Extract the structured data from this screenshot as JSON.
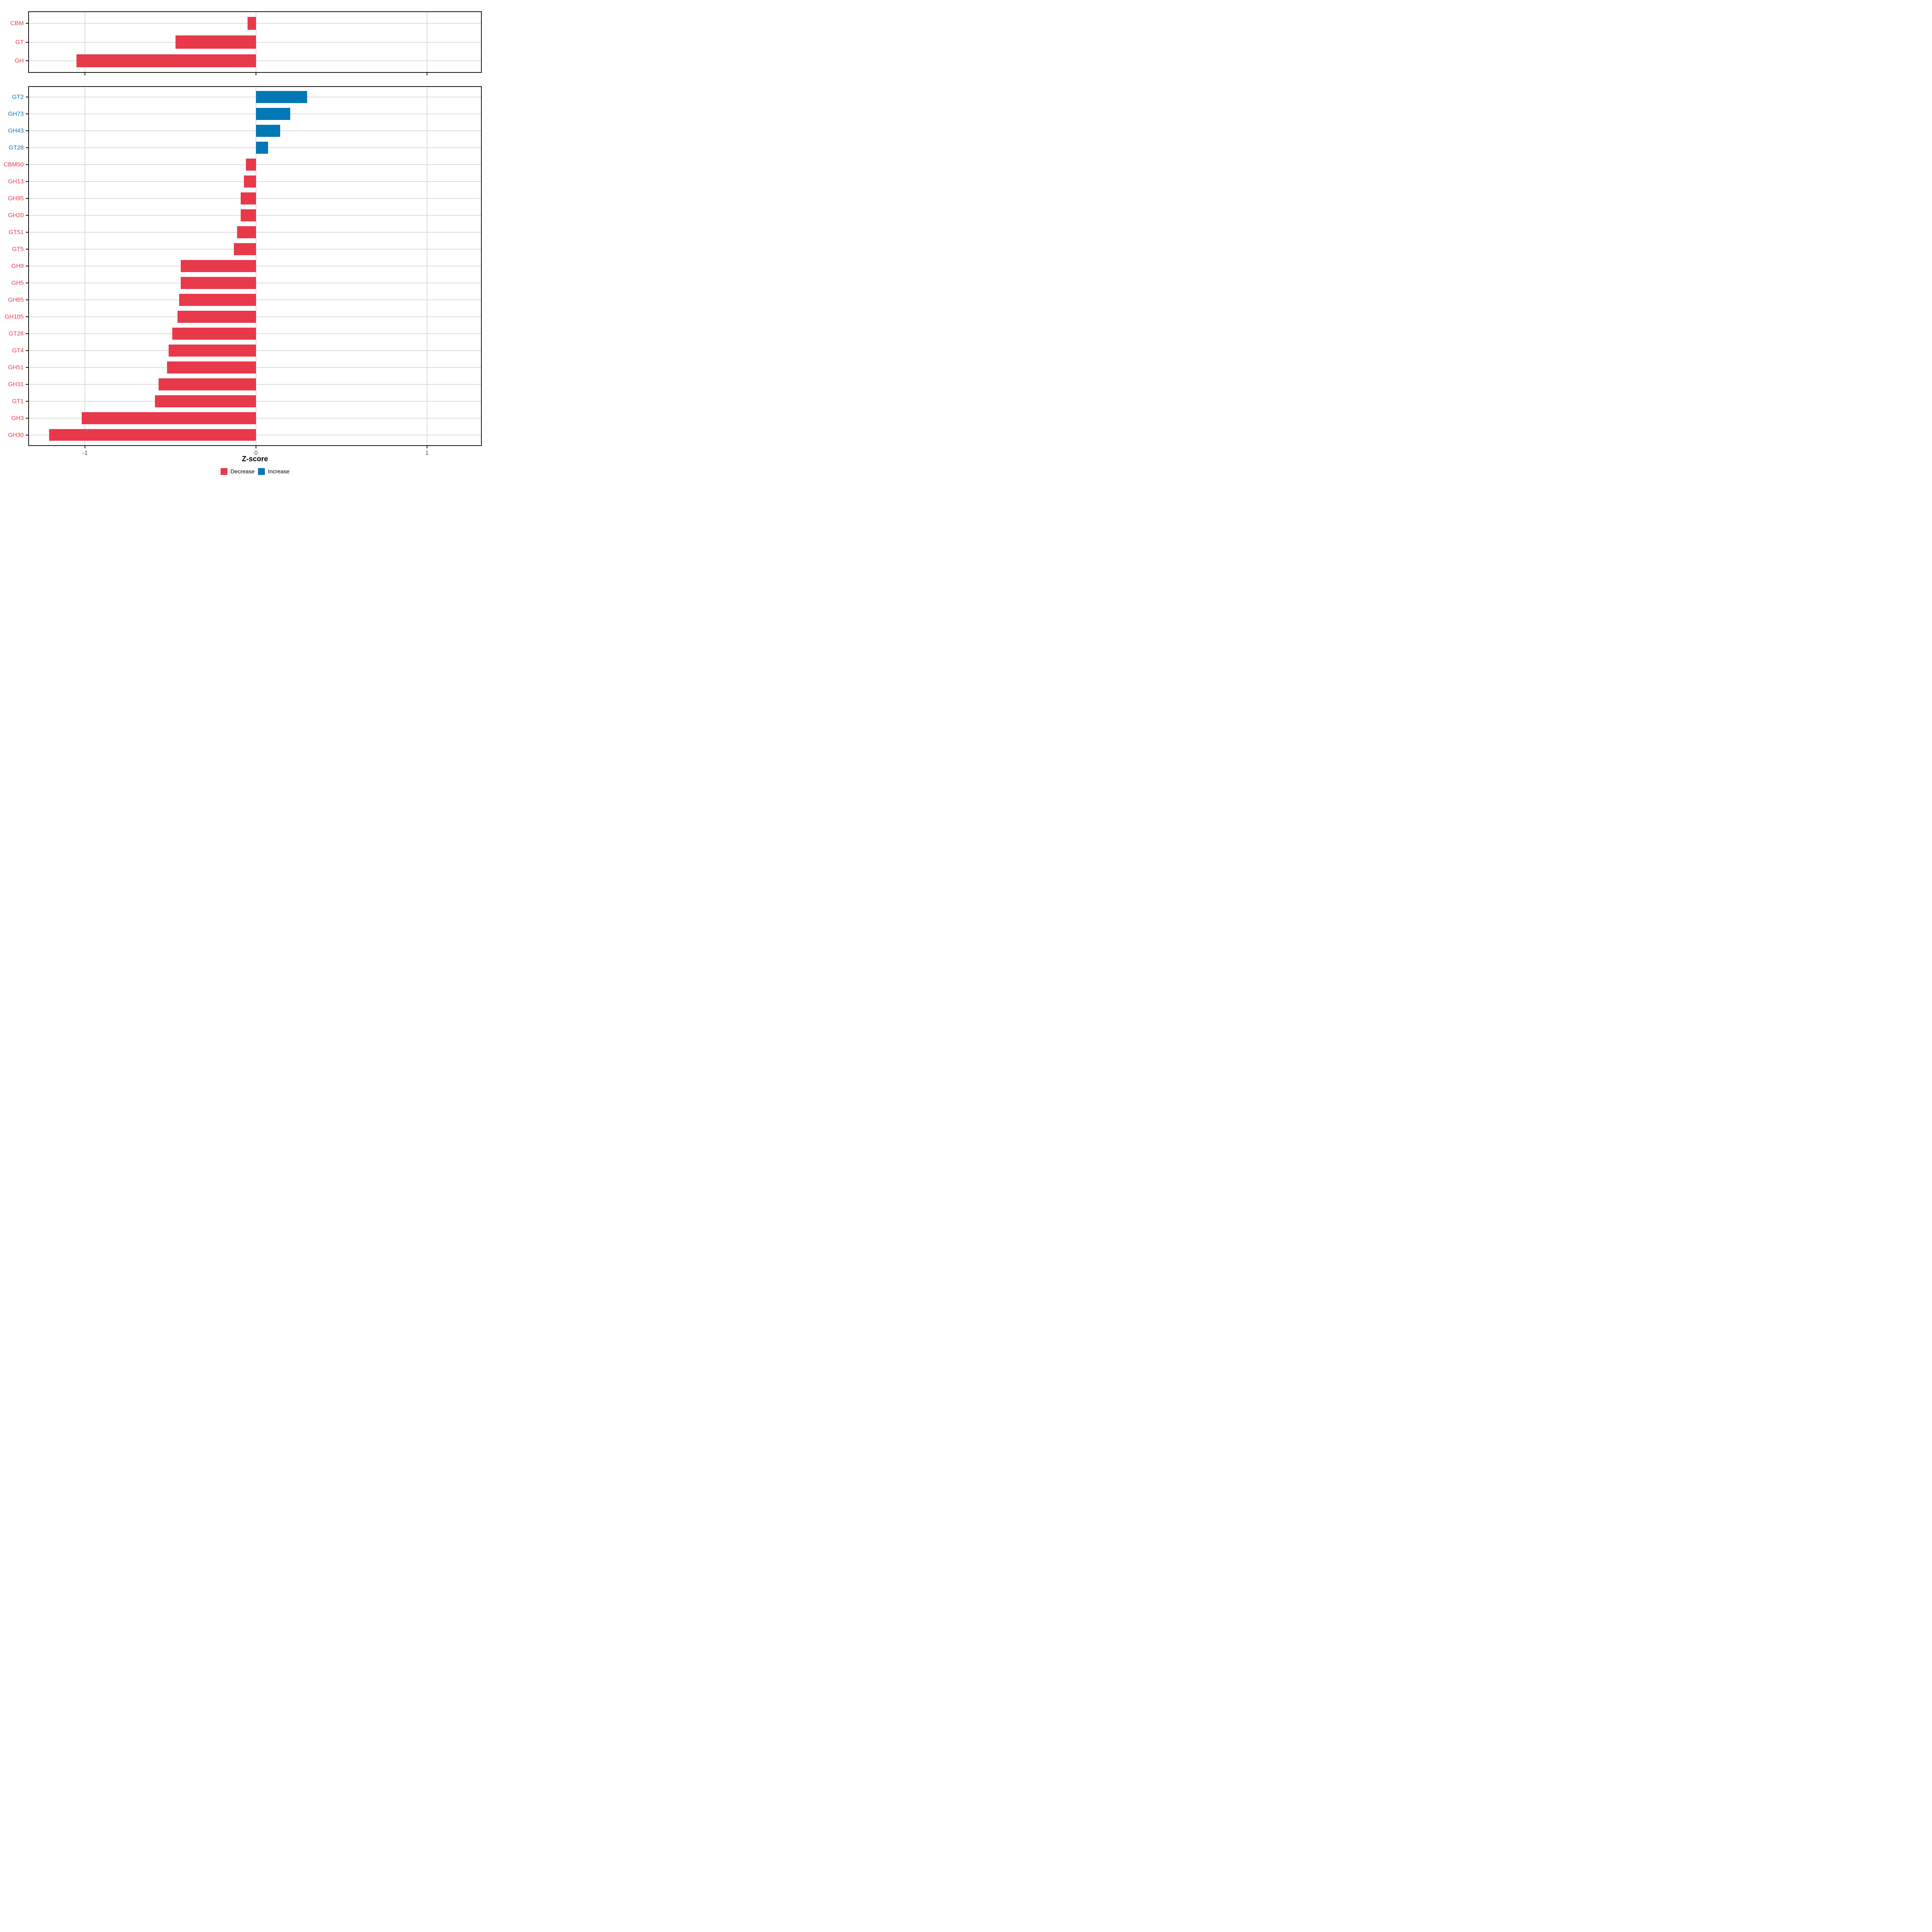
{
  "colors": {
    "decrease": "#E8394A",
    "increase": "#0277B5",
    "grid": "#DDDDDD",
    "panel_border": "#1A1A1A",
    "tick_label": "#4D4D4D",
    "axis_title": "#000000",
    "background": "#FFFFFF"
  },
  "legend": {
    "items": [
      {
        "label": "Decrease",
        "color": "#E8394A",
        "direction": "decrease"
      },
      {
        "label": "Increase",
        "color": "#0277B5",
        "direction": "increase"
      }
    ]
  },
  "chart_data": {
    "type": "bar",
    "orientation": "horizontal",
    "xlabel": "Z-score",
    "xlim": [
      -1.328,
      1.316
    ],
    "xticks": [
      -1,
      0,
      1
    ],
    "grid": "major",
    "legend_position": "bottom",
    "bar_width_fraction": 0.7,
    "panels": [
      {
        "name": "cazyme-class-summary",
        "categories": [
          "CBM",
          "GT",
          "GH"
        ],
        "values": [
          -0.05,
          -0.47,
          -1.05
        ],
        "directions": [
          "decrease",
          "decrease",
          "decrease"
        ]
      },
      {
        "name": "cazyme-families",
        "categories": [
          "GT2",
          "GH73",
          "GH43",
          "GT28",
          "CBM50",
          "GH13",
          "GH95",
          "GH20",
          "GT51",
          "GT5",
          "GH9",
          "GH5",
          "GH65",
          "GH105",
          "GT26",
          "GT4",
          "GH51",
          "GH31",
          "GT1",
          "GH3",
          "GH30"
        ],
        "values": [
          0.3,
          0.2,
          0.14,
          0.07,
          -0.06,
          -0.07,
          -0.09,
          -0.09,
          -0.11,
          -0.13,
          -0.44,
          -0.44,
          -0.45,
          -0.46,
          -0.49,
          -0.51,
          -0.52,
          -0.57,
          -0.59,
          -1.02,
          -1.21
        ],
        "directions": [
          "increase",
          "increase",
          "increase",
          "increase",
          "decrease",
          "decrease",
          "decrease",
          "decrease",
          "decrease",
          "decrease",
          "decrease",
          "decrease",
          "decrease",
          "decrease",
          "decrease",
          "decrease",
          "decrease",
          "decrease",
          "decrease",
          "decrease",
          "decrease"
        ]
      }
    ]
  }
}
